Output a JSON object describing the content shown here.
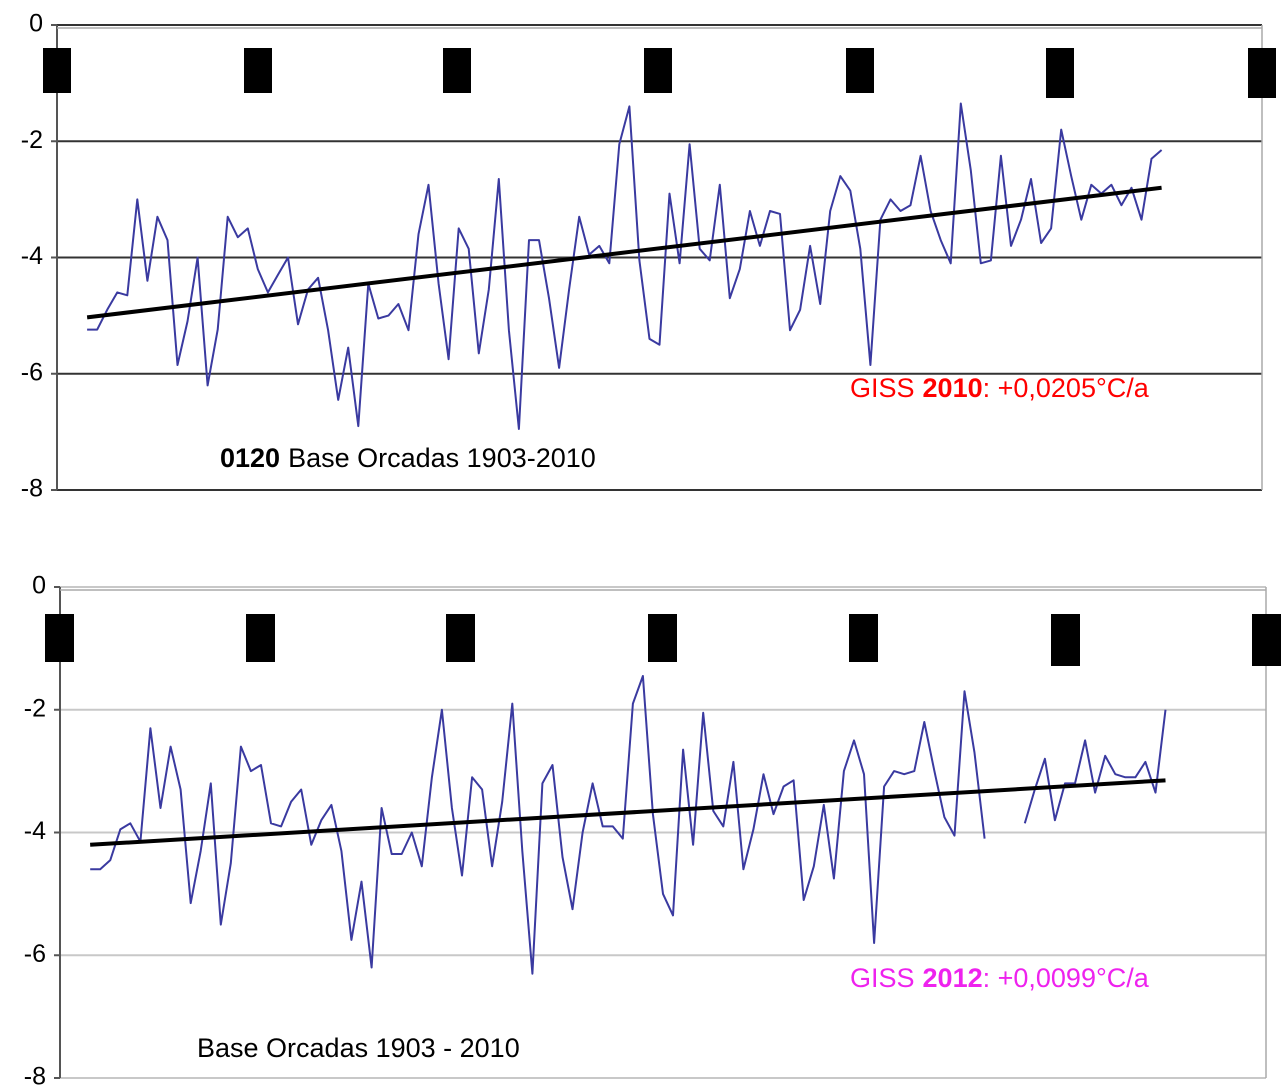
{
  "chart_data": [
    {
      "type": "line",
      "xlim": [
        1900,
        2020
      ],
      "ylim": [
        -8,
        0
      ],
      "yticks": [
        0,
        -2,
        -4,
        -6,
        -8
      ],
      "grid": true,
      "grid_color": "#333333",
      "x": [
        1903,
        1904,
        1905,
        1906,
        1907,
        1908,
        1909,
        1910,
        1911,
        1912,
        1913,
        1914,
        1915,
        1916,
        1917,
        1918,
        1919,
        1920,
        1921,
        1922,
        1923,
        1924,
        1925,
        1926,
        1927,
        1928,
        1929,
        1930,
        1931,
        1932,
        1933,
        1934,
        1935,
        1936,
        1937,
        1938,
        1939,
        1940,
        1941,
        1942,
        1943,
        1944,
        1945,
        1946,
        1947,
        1948,
        1949,
        1950,
        1951,
        1952,
        1953,
        1954,
        1955,
        1956,
        1957,
        1958,
        1959,
        1960,
        1961,
        1962,
        1963,
        1964,
        1965,
        1966,
        1967,
        1968,
        1969,
        1970,
        1971,
        1972,
        1973,
        1974,
        1975,
        1976,
        1977,
        1978,
        1979,
        1980,
        1981,
        1982,
        1983,
        1984,
        1985,
        1986,
        1987,
        1988,
        1989,
        1990,
        1991,
        1992,
        1993,
        1994,
        1995,
        1996,
        1997,
        1998,
        1999,
        2000,
        2001,
        2002,
        2003,
        2004,
        2005,
        2006,
        2007,
        2008,
        2009,
        2010
      ],
      "series": [
        {
          "color": "#3a3aa0",
          "values": [
            -5.24,
            -5.24,
            -4.9,
            -4.6,
            -4.65,
            -3.0,
            -4.4,
            -3.3,
            -3.7,
            -5.85,
            -5.1,
            -4.0,
            -6.2,
            -5.24,
            -3.3,
            -3.65,
            -3.5,
            -4.2,
            -4.6,
            -4.3,
            -4.0,
            -5.15,
            -4.55,
            -4.35,
            -5.25,
            -6.45,
            -5.55,
            -6.9,
            -4.45,
            -5.05,
            -5.0,
            -4.8,
            -5.25,
            -3.6,
            -2.75,
            -4.45,
            -5.75,
            -3.5,
            -3.85,
            -5.65,
            -4.55,
            -2.65,
            -5.25,
            -6.95,
            -3.7,
            -3.7,
            -4.7,
            -5.9,
            -4.55,
            -3.3,
            -3.95,
            -3.8,
            -4.1,
            -2.05,
            -1.4,
            -4.05,
            -5.4,
            -5.5,
            -2.9,
            -4.1,
            -2.05,
            -3.85,
            -4.05,
            -2.75,
            -4.7,
            -4.2,
            -3.2,
            -3.8,
            -3.2,
            -3.25,
            -5.25,
            -4.9,
            -3.8,
            -4.8,
            -3.2,
            -2.6,
            -2.85,
            -3.85,
            -5.85,
            -3.35,
            -3.0,
            -3.2,
            -3.1,
            -2.25,
            -3.2,
            -3.7,
            -4.1,
            -1.35,
            -2.5,
            -4.1,
            -4.05,
            -2.25,
            -3.8,
            -3.35,
            -2.65,
            -3.75,
            -3.5,
            -1.8,
            -2.6,
            -3.35,
            -2.75,
            -2.9,
            -2.75,
            -3.1,
            -2.8,
            -3.35,
            -2.3,
            -2.15
          ]
        }
      ],
      "trend": {
        "x": [
          1903,
          2010
        ],
        "values": [
          -5.03,
          -2.8
        ],
        "color": "#000000"
      },
      "label": {
        "code": "0120",
        "text": "Base Orcadas 1903-2010"
      },
      "giss_label": {
        "prefix": "GISS",
        "year": "2010",
        "rate": ": +0,0205°C/a",
        "color": "#ff0000"
      }
    },
    {
      "type": "line",
      "xlim": [
        1900,
        2020
      ],
      "ylim": [
        -8,
        0
      ],
      "yticks": [
        0,
        -2,
        -4,
        -6,
        -8
      ],
      "grid": true,
      "grid_color": "#c8c8c8",
      "x": [
        1903,
        1904,
        1905,
        1906,
        1907,
        1908,
        1909,
        1910,
        1911,
        1912,
        1913,
        1914,
        1915,
        1916,
        1917,
        1918,
        1919,
        1920,
        1921,
        1922,
        1923,
        1924,
        1925,
        1926,
        1927,
        1928,
        1929,
        1930,
        1931,
        1932,
        1933,
        1934,
        1935,
        1936,
        1937,
        1938,
        1939,
        1940,
        1941,
        1942,
        1943,
        1944,
        1945,
        1946,
        1947,
        1948,
        1949,
        1950,
        1951,
        1952,
        1953,
        1954,
        1955,
        1956,
        1957,
        1958,
        1959,
        1960,
        1961,
        1962,
        1963,
        1964,
        1965,
        1966,
        1967,
        1968,
        1969,
        1970,
        1971,
        1972,
        1973,
        1974,
        1975,
        1976,
        1977,
        1978,
        1979,
        1980,
        1981,
        1982,
        1983,
        1984,
        1985,
        1986,
        1987,
        1988,
        1989,
        1990,
        1991,
        1992,
        1993,
        1994,
        1995,
        1996,
        1997,
        1998,
        1999,
        2000,
        2001,
        2002,
        2003,
        2004,
        2005,
        2006,
        2007,
        2008,
        2009,
        2010
      ],
      "series": [
        {
          "color": "#3a3aa0",
          "values": [
            -4.6,
            -4.6,
            -4.45,
            -3.95,
            -3.85,
            -4.15,
            -2.3,
            -3.6,
            -2.6,
            -3.3,
            -5.15,
            -4.3,
            -3.2,
            -5.5,
            -4.5,
            -2.6,
            -3.0,
            -2.9,
            -3.85,
            -3.9,
            -3.5,
            -3.3,
            -4.2,
            -3.8,
            -3.55,
            -4.3,
            -5.75,
            -4.8,
            -6.2,
            -3.6,
            -4.35,
            -4.35,
            -4.0,
            -4.55,
            -3.1,
            -2.0,
            -3.6,
            -4.7,
            -3.1,
            -3.3,
            -4.55,
            -3.5,
            -1.9,
            -4.3,
            -6.3,
            -3.2,
            -2.9,
            -4.4,
            -5.25,
            -4.0,
            -3.2,
            -3.9,
            -3.9,
            -4.1,
            -1.9,
            -1.45,
            -3.7,
            -5.0,
            -5.35,
            -2.65,
            -4.2,
            -2.05,
            -3.65,
            -3.9,
            -2.85,
            -4.6,
            -3.95,
            -3.05,
            -3.7,
            -3.25,
            -3.15,
            -5.1,
            -4.55,
            -3.55,
            -4.75,
            -3.0,
            -2.5,
            -3.05,
            -5.8,
            -3.25,
            -3.0,
            -3.05,
            -3.0,
            -2.2,
            -3.0,
            -3.75,
            -4.05,
            -1.7,
            -2.7,
            -4.1,
            null,
            null,
            null,
            -3.85,
            -3.3,
            -2.8,
            -3.8,
            -3.2,
            -3.2,
            -2.5,
            -3.35,
            -2.75,
            -3.05,
            -3.1,
            -3.1,
            -2.85,
            -3.35,
            -2.0
          ]
        }
      ],
      "trend": {
        "x": [
          1903,
          2010
        ],
        "values": [
          -4.2,
          -3.15
        ],
        "color": "#000000"
      },
      "label": {
        "text": "Base Orcadas 1903 - 2010"
      },
      "giss_label": {
        "prefix": "GISS",
        "year": "2012",
        "rate": ": +0,0099°C/a",
        "color": "#ee22ee"
      }
    }
  ]
}
